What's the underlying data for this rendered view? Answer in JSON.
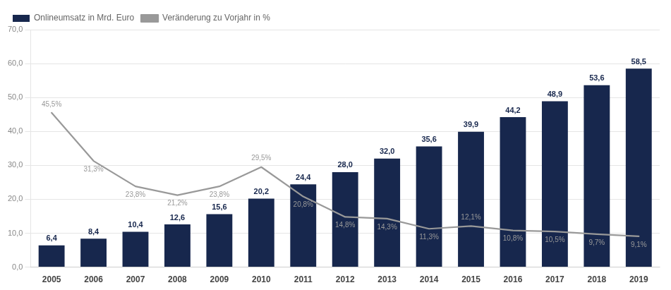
{
  "chart_data": {
    "type": "bar",
    "categories": [
      "2005",
      "2006",
      "2007",
      "2008",
      "2009",
      "2010",
      "2011",
      "2012",
      "2013",
      "2014",
      "2015",
      "2016",
      "2017",
      "2018",
      "2019"
    ],
    "series": [
      {
        "name": "Onlineumsatz in Mrd. Euro",
        "type": "bar",
        "color": "#17274d",
        "values": [
          6.4,
          8.4,
          10.4,
          12.6,
          15.6,
          20.2,
          24.4,
          28.0,
          32.0,
          35.6,
          39.9,
          44.2,
          48.9,
          53.6,
          58.5
        ],
        "value_labels": [
          "6,4",
          "8,4",
          "10,4",
          "12,6",
          "15,6",
          "20,2",
          "24,4",
          "28,0",
          "32,0",
          "35,6",
          "39,9",
          "44,2",
          "48,9",
          "53,6",
          "58,5"
        ]
      },
      {
        "name": "Veränderung zu Vorjahr in %",
        "type": "line",
        "color": "#999999",
        "values": [
          45.5,
          31.3,
          23.8,
          21.2,
          23.8,
          29.5,
          20.8,
          14.8,
          14.3,
          11.3,
          12.1,
          10.8,
          10.5,
          9.7,
          9.1
        ],
        "value_labels": [
          "45,5%",
          "31,3%",
          "23,8%",
          "21,2%",
          "23,8%",
          "29,5%",
          "20,8%",
          "14,8%",
          "14,3%",
          "11,3%",
          "12,1%",
          "10,8%",
          "10,5%",
          "9,7%",
          "9,1%"
        ]
      }
    ],
    "ylim": [
      0,
      70
    ],
    "yticks": [
      {
        "value": 0,
        "label": "0,0"
      },
      {
        "value": 10,
        "label": "10,0"
      },
      {
        "value": 20,
        "label": "20,0"
      },
      {
        "value": 30,
        "label": "30,0"
      },
      {
        "value": 40,
        "label": "40,0"
      },
      {
        "value": 50,
        "label": "50,0"
      },
      {
        "value": 60,
        "label": "60,0"
      },
      {
        "value": 70,
        "label": "70,0"
      }
    ],
    "grid": true,
    "legend": "upper left",
    "data_labels": true
  }
}
